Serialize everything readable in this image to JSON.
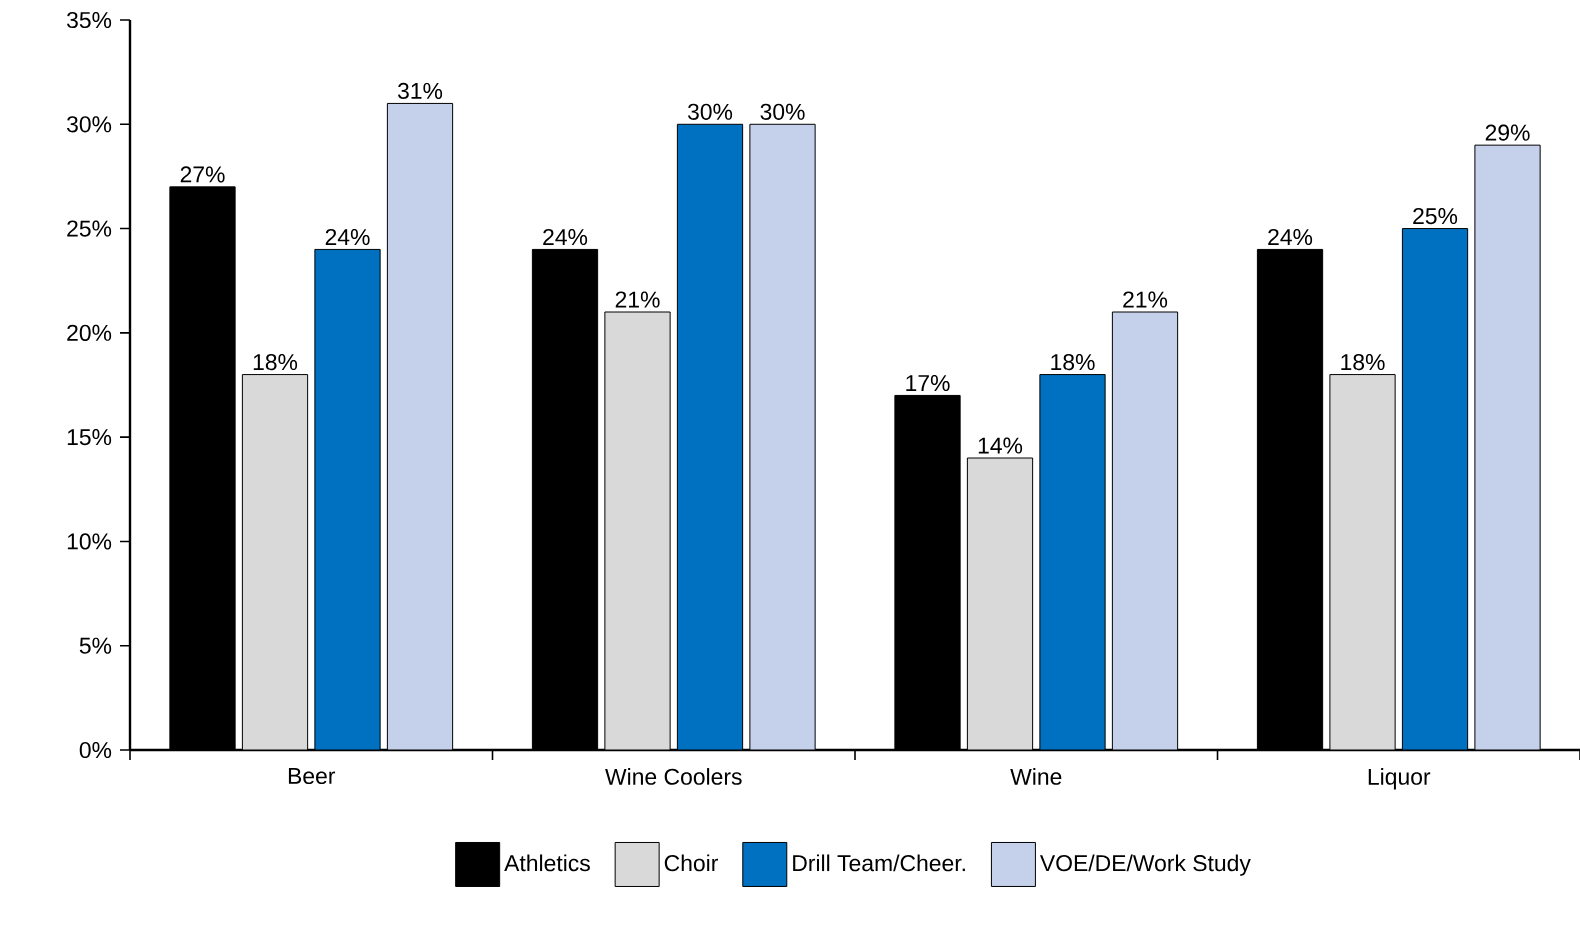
{
  "chart_data": {
    "type": "bar",
    "categories": [
      "Beer",
      "Wine Coolers",
      "Wine",
      "Liquor"
    ],
    "series": [
      {
        "name": "Athletics",
        "color": "#000000",
        "values": [
          27,
          24,
          17,
          24
        ],
        "value_labels": [
          "27%",
          "24%",
          "17%",
          "24%"
        ]
      },
      {
        "name": "Choir",
        "color": "#d9d9d9",
        "values": [
          18,
          21,
          14,
          18
        ],
        "value_labels": [
          "18%",
          "21%",
          "14%",
          "18%"
        ]
      },
      {
        "name": "Drill Team/Cheer.",
        "color": "#0070c0",
        "values": [
          24,
          30,
          18,
          25
        ],
        "value_labels": [
          "24%",
          "30%",
          "18%",
          "25%"
        ]
      },
      {
        "name": "VOE/DE/Work Study",
        "color": "#c5d0ea",
        "values": [
          31,
          30,
          21,
          29
        ],
        "value_labels": [
          "31%",
          "30%",
          "21%",
          "29%"
        ]
      }
    ],
    "ylim": [
      0,
      35
    ],
    "yticks": [
      {
        "value": 0,
        "label": "0%"
      },
      {
        "value": 5,
        "label": "5%"
      },
      {
        "value": 10,
        "label": "10%"
      },
      {
        "value": 15,
        "label": "15%"
      },
      {
        "value": 20,
        "label": "20%"
      },
      {
        "value": 25,
        "label": "25%"
      },
      {
        "value": 30,
        "label": "30%"
      },
      {
        "value": 35,
        "label": "35%"
      }
    ],
    "grid": false,
    "legend": "bottom"
  }
}
